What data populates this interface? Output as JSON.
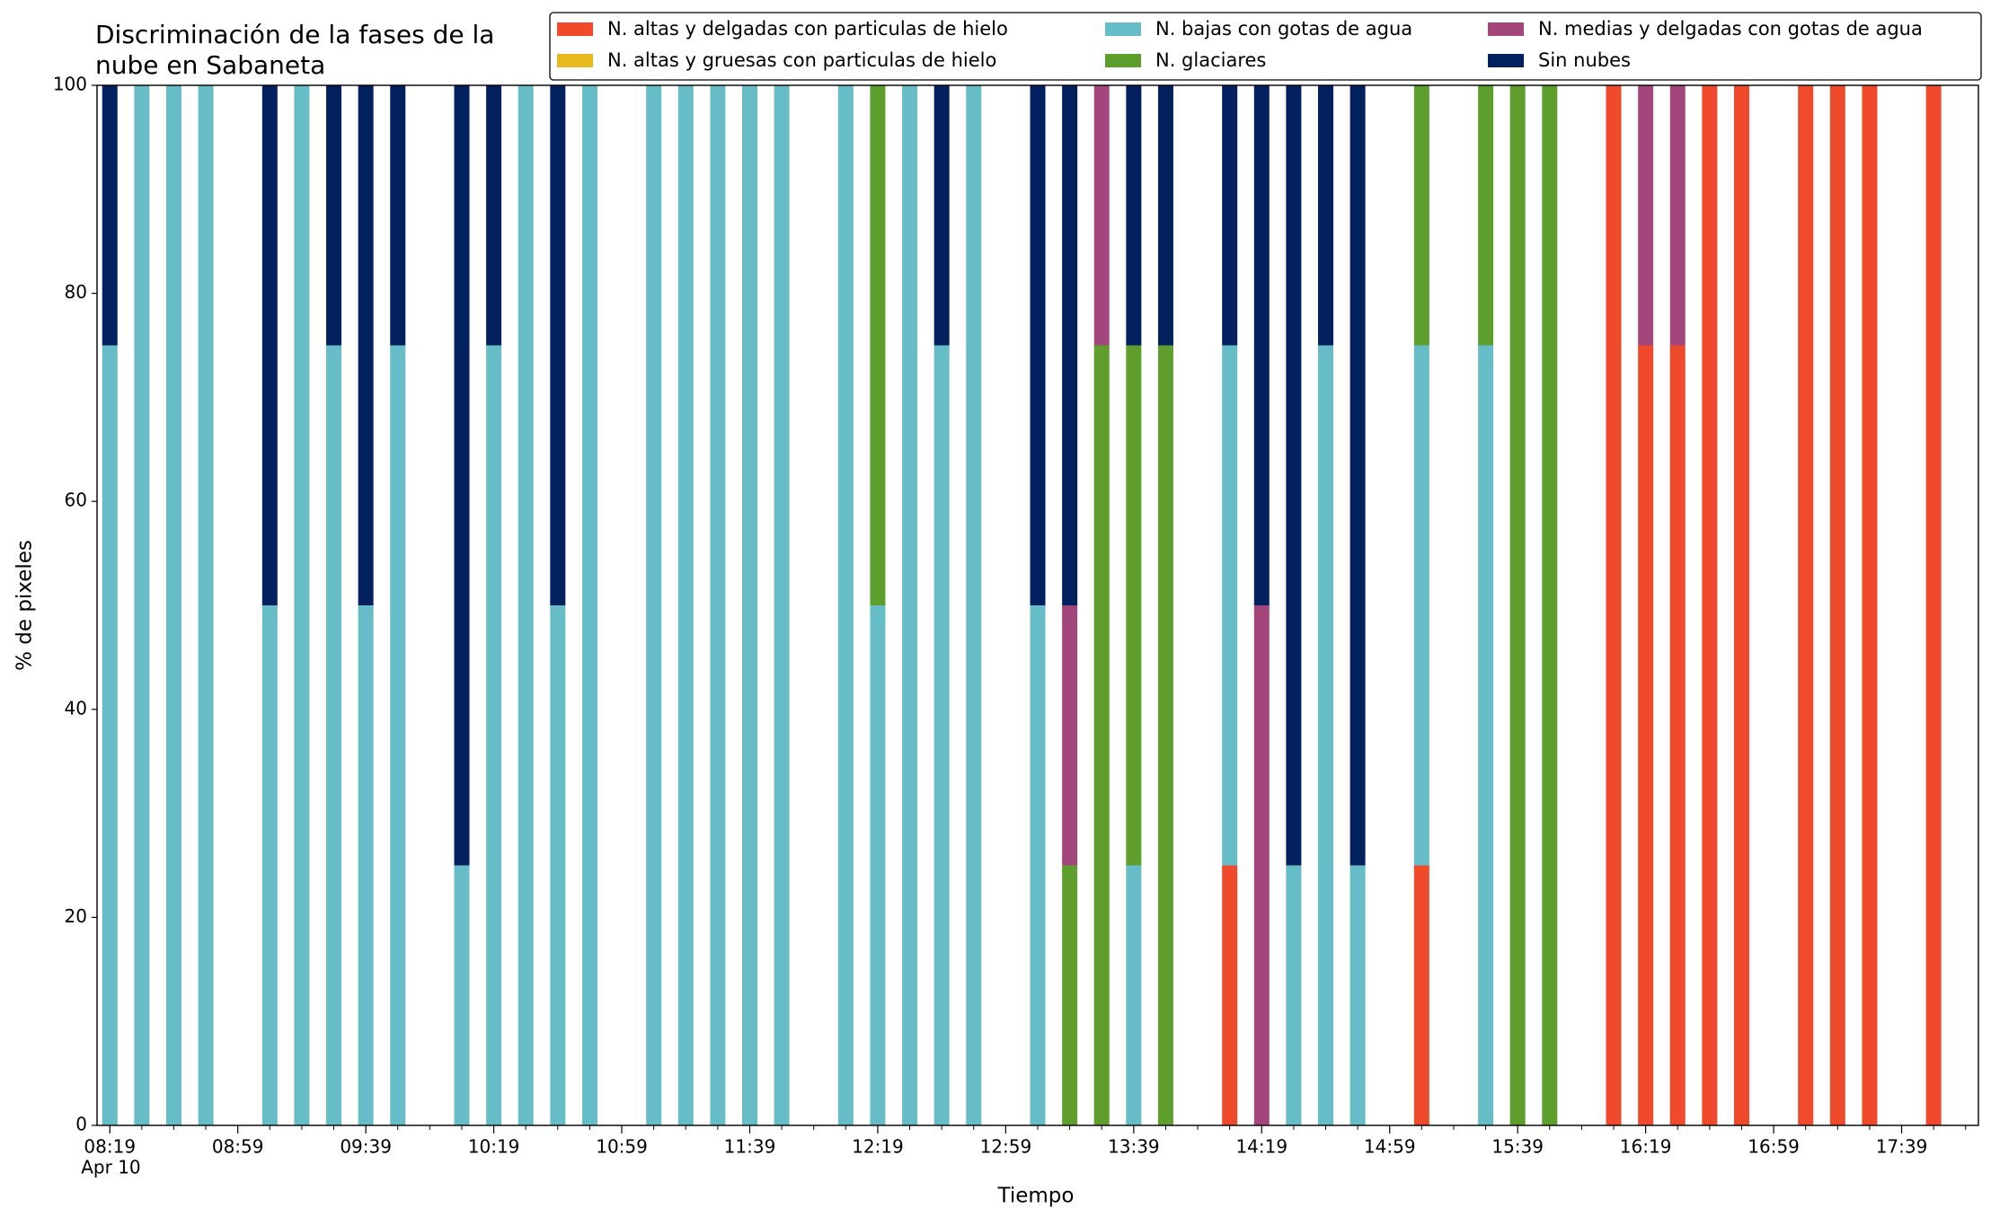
{
  "chart_data": {
    "type": "stacked_bar",
    "title": "Discriminación de la fases de la\nnube en Sabaneta",
    "xlabel": "Tiempo",
    "ylabel": "% de pixeles",
    "x": [
      "08:19",
      "08:29",
      "08:39",
      "08:49",
      "09:09",
      "09:19",
      "09:29",
      "09:39",
      "09:49",
      "10:09",
      "10:19",
      "10:29",
      "10:39",
      "10:49",
      "11:09",
      "11:19",
      "11:29",
      "11:39",
      "11:49",
      "12:09",
      "12:19",
      "12:29",
      "12:39",
      "12:49",
      "13:09",
      "13:19",
      "13:29",
      "13:39",
      "13:49",
      "14:09",
      "14:19",
      "14:29",
      "14:39",
      "14:49",
      "15:09",
      "15:29",
      "15:39",
      "15:49",
      "16:09",
      "16:19",
      "16:29",
      "16:39",
      "16:49",
      "17:09",
      "17:19",
      "17:29",
      "17:49"
    ],
    "series": [
      {
        "name": "N. altas y delgadas con particulas de hielo",
        "color": "#ef4a2c",
        "values": [
          0,
          0,
          0,
          0,
          0,
          0,
          0,
          0,
          0,
          0,
          0,
          0,
          0,
          0,
          0,
          0,
          0,
          0,
          0,
          0,
          0,
          0,
          0,
          0,
          0,
          0,
          0,
          0,
          0,
          25,
          0,
          0,
          0,
          0,
          25,
          0,
          0,
          0,
          100,
          75,
          75,
          100,
          100,
          100,
          100,
          100,
          100
        ]
      },
      {
        "name": "N. altas y gruesas con particulas de hielo",
        "color": "#e6b91e",
        "values": [
          0,
          0,
          0,
          0,
          0,
          0,
          0,
          0,
          0,
          0,
          0,
          0,
          0,
          0,
          0,
          0,
          0,
          0,
          0,
          0,
          0,
          0,
          0,
          0,
          0,
          0,
          0,
          0,
          0,
          0,
          0,
          0,
          0,
          0,
          0,
          0,
          0,
          0,
          0,
          0,
          0,
          0,
          0,
          0,
          0,
          0,
          0
        ]
      },
      {
        "name": "N. bajas con gotas de agua",
        "color": "#66bdc8",
        "values": [
          75,
          100,
          100,
          100,
          50,
          100,
          75,
          50,
          75,
          25,
          75,
          100,
          50,
          100,
          100,
          100,
          100,
          100,
          100,
          100,
          50,
          100,
          75,
          100,
          50,
          0,
          0,
          25,
          0,
          50,
          0,
          25,
          75,
          25,
          50,
          75,
          0,
          0,
          0,
          0,
          0,
          0,
          0,
          0,
          0,
          0,
          0
        ]
      },
      {
        "name": "N. glaciares",
        "color": "#5d9e2d",
        "values": [
          0,
          0,
          0,
          0,
          0,
          0,
          0,
          0,
          0,
          0,
          0,
          0,
          0,
          0,
          0,
          0,
          0,
          0,
          0,
          0,
          50,
          0,
          0,
          0,
          0,
          25,
          75,
          50,
          75,
          0,
          0,
          0,
          0,
          0,
          25,
          25,
          100,
          100,
          0,
          0,
          0,
          0,
          0,
          0,
          0,
          0,
          0
        ]
      },
      {
        "name": "N. medias y delgadas con gotas de agua",
        "color": "#a2467c",
        "values": [
          0,
          0,
          0,
          0,
          0,
          0,
          0,
          0,
          0,
          0,
          0,
          0,
          0,
          0,
          0,
          0,
          0,
          0,
          0,
          0,
          0,
          0,
          0,
          0,
          0,
          25,
          25,
          0,
          0,
          0,
          50,
          0,
          0,
          0,
          0,
          0,
          0,
          0,
          0,
          25,
          25,
          0,
          0,
          0,
          0,
          0,
          0
        ]
      },
      {
        "name": "Sin nubes",
        "color": "#03205f",
        "values": [
          25,
          0,
          0,
          0,
          50,
          0,
          25,
          50,
          25,
          75,
          25,
          0,
          50,
          0,
          0,
          0,
          0,
          0,
          0,
          0,
          0,
          0,
          25,
          0,
          50,
          50,
          0,
          25,
          25,
          25,
          50,
          75,
          25,
          75,
          0,
          0,
          0,
          0,
          0,
          0,
          0,
          0,
          0,
          0,
          0,
          0,
          0
        ]
      }
    ],
    "xlim": [
      "08:15",
      "18:03"
    ],
    "xticks": [
      "08:19",
      "08:59",
      "09:39",
      "10:19",
      "10:59",
      "11:39",
      "12:19",
      "12:59",
      "13:39",
      "14:19",
      "14:59",
      "15:39",
      "16:19",
      "16:59",
      "17:39"
    ],
    "xdate": "Apr 10",
    "xminorticks": [
      "08:29",
      "08:39",
      "08:49",
      "09:09",
      "09:19",
      "09:29",
      "09:49",
      "09:59",
      "10:09",
      "10:29",
      "10:39",
      "10:49",
      "11:09",
      "11:19",
      "11:29",
      "11:49",
      "11:59",
      "12:09",
      "12:29",
      "12:39",
      "12:49",
      "13:09",
      "13:19",
      "13:29",
      "13:49",
      "13:59",
      "14:09",
      "14:29",
      "14:39",
      "14:49",
      "15:09",
      "15:19",
      "15:29",
      "15:49",
      "15:59",
      "16:09",
      "16:29",
      "16:39",
      "16:49",
      "17:09",
      "17:19",
      "17:29",
      "17:49",
      "17:59"
    ],
    "ylim": [
      0,
      100
    ],
    "yticks": [
      0,
      20,
      40,
      60,
      80,
      100
    ],
    "legend": "upper right"
  }
}
